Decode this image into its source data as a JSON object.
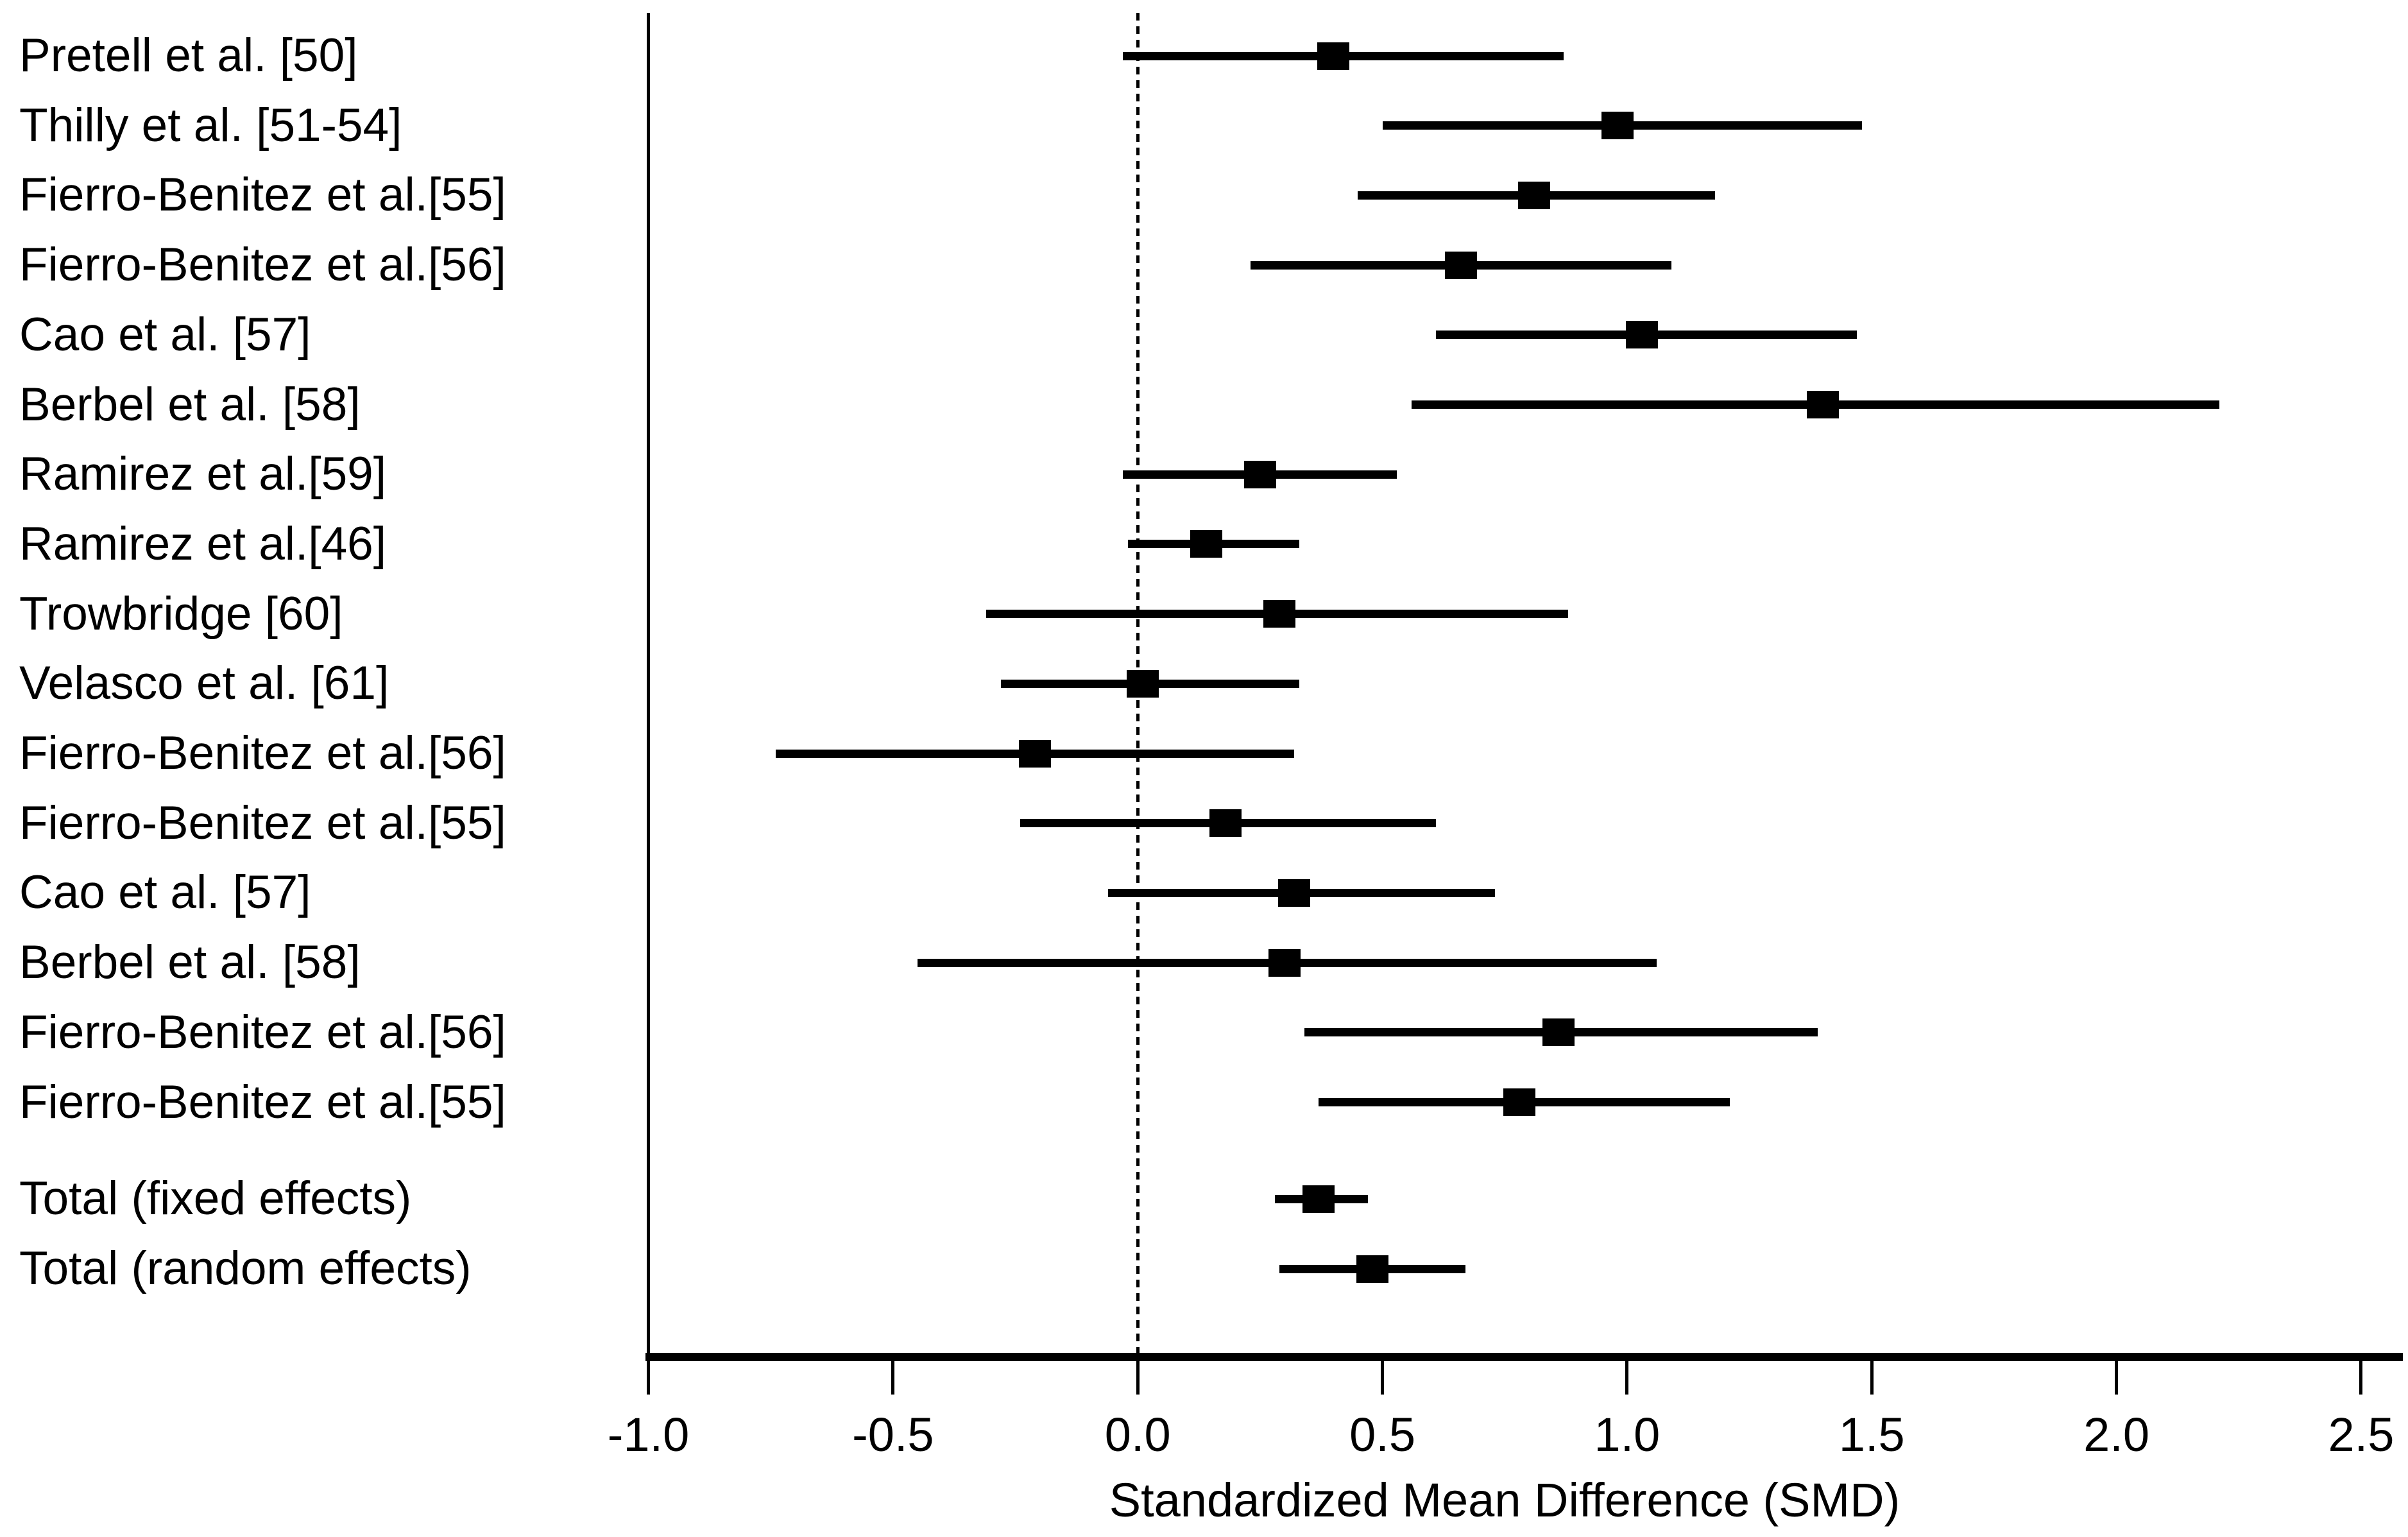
{
  "figure": {
    "background_color": "#ffffff",
    "ink_color": "#000000"
  },
  "chart_data": {
    "type": "forest",
    "title": "",
    "xlabel": "Standardized Mean Difference (SMD)",
    "xlim": [
      -1.0,
      2.5
    ],
    "x_ticks": [
      -1.0,
      -0.5,
      0.0,
      0.5,
      1.0,
      1.5,
      2.0,
      2.5
    ],
    "x_tick_labels": [
      "-1.0",
      "-0.5",
      "0.0",
      "0.5",
      "1.0",
      "1.5",
      "2.0",
      "2.5"
    ],
    "zero_reference_line": 0.0,
    "grid": "off",
    "rows": [
      {
        "label": "Pretell et al. [50]",
        "smd": 0.4,
        "ci_low": -0.03,
        "ci_high": 0.87,
        "group": "study"
      },
      {
        "label": "Thilly et al. [51-54]",
        "smd": 0.98,
        "ci_low": 0.5,
        "ci_high": 1.48,
        "group": "study"
      },
      {
        "label": "Fierro-Benitez et al.[55]",
        "smd": 0.81,
        "ci_low": 0.45,
        "ci_high": 1.18,
        "group": "study"
      },
      {
        "label": "Fierro-Benitez et al.[56]",
        "smd": 0.66,
        "ci_low": 0.23,
        "ci_high": 1.09,
        "group": "study"
      },
      {
        "label": "Cao et al. [57]",
        "smd": 1.03,
        "ci_low": 0.61,
        "ci_high": 1.47,
        "group": "study"
      },
      {
        "label": "Berbel et al. [58]",
        "smd": 1.4,
        "ci_low": 0.56,
        "ci_high": 2.21,
        "group": "study"
      },
      {
        "label": "Ramirez et al.[59]",
        "smd": 0.25,
        "ci_low": -0.03,
        "ci_high": 0.53,
        "group": "study"
      },
      {
        "label": "Ramirez et al.[46]",
        "smd": 0.14,
        "ci_low": -0.02,
        "ci_high": 0.33,
        "group": "study"
      },
      {
        "label": "Trowbridge [60]",
        "smd": 0.29,
        "ci_low": -0.31,
        "ci_high": 0.88,
        "group": "study"
      },
      {
        "label": "Velasco et al. [61]",
        "smd": 0.01,
        "ci_low": -0.28,
        "ci_high": 0.33,
        "group": "study"
      },
      {
        "label": "Fierro-Benitez et al.[56]",
        "smd": -0.21,
        "ci_low": -0.74,
        "ci_high": 0.32,
        "group": "study"
      },
      {
        "label": "Fierro-Benitez et al.[55]",
        "smd": 0.18,
        "ci_low": -0.24,
        "ci_high": 0.61,
        "group": "study"
      },
      {
        "label": "Cao et al. [57]",
        "smd": 0.32,
        "ci_low": -0.06,
        "ci_high": 0.73,
        "group": "study"
      },
      {
        "label": "Berbel et al. [58]",
        "smd": 0.3,
        "ci_low": -0.45,
        "ci_high": 1.06,
        "group": "study"
      },
      {
        "label": "Fierro-Benitez et al.[56]",
        "smd": 0.86,
        "ci_low": 0.34,
        "ci_high": 1.39,
        "group": "study"
      },
      {
        "label": "Fierro-Benitez et al.[55]",
        "smd": 0.78,
        "ci_low": 0.37,
        "ci_high": 1.21,
        "group": "study"
      },
      {
        "label": "Total (fixed effects)",
        "smd": 0.37,
        "ci_low": 0.28,
        "ci_high": 0.47,
        "group": "total"
      },
      {
        "label": "Total (random effects)",
        "smd": 0.48,
        "ci_low": 0.29,
        "ci_high": 0.67,
        "group": "total"
      }
    ]
  }
}
